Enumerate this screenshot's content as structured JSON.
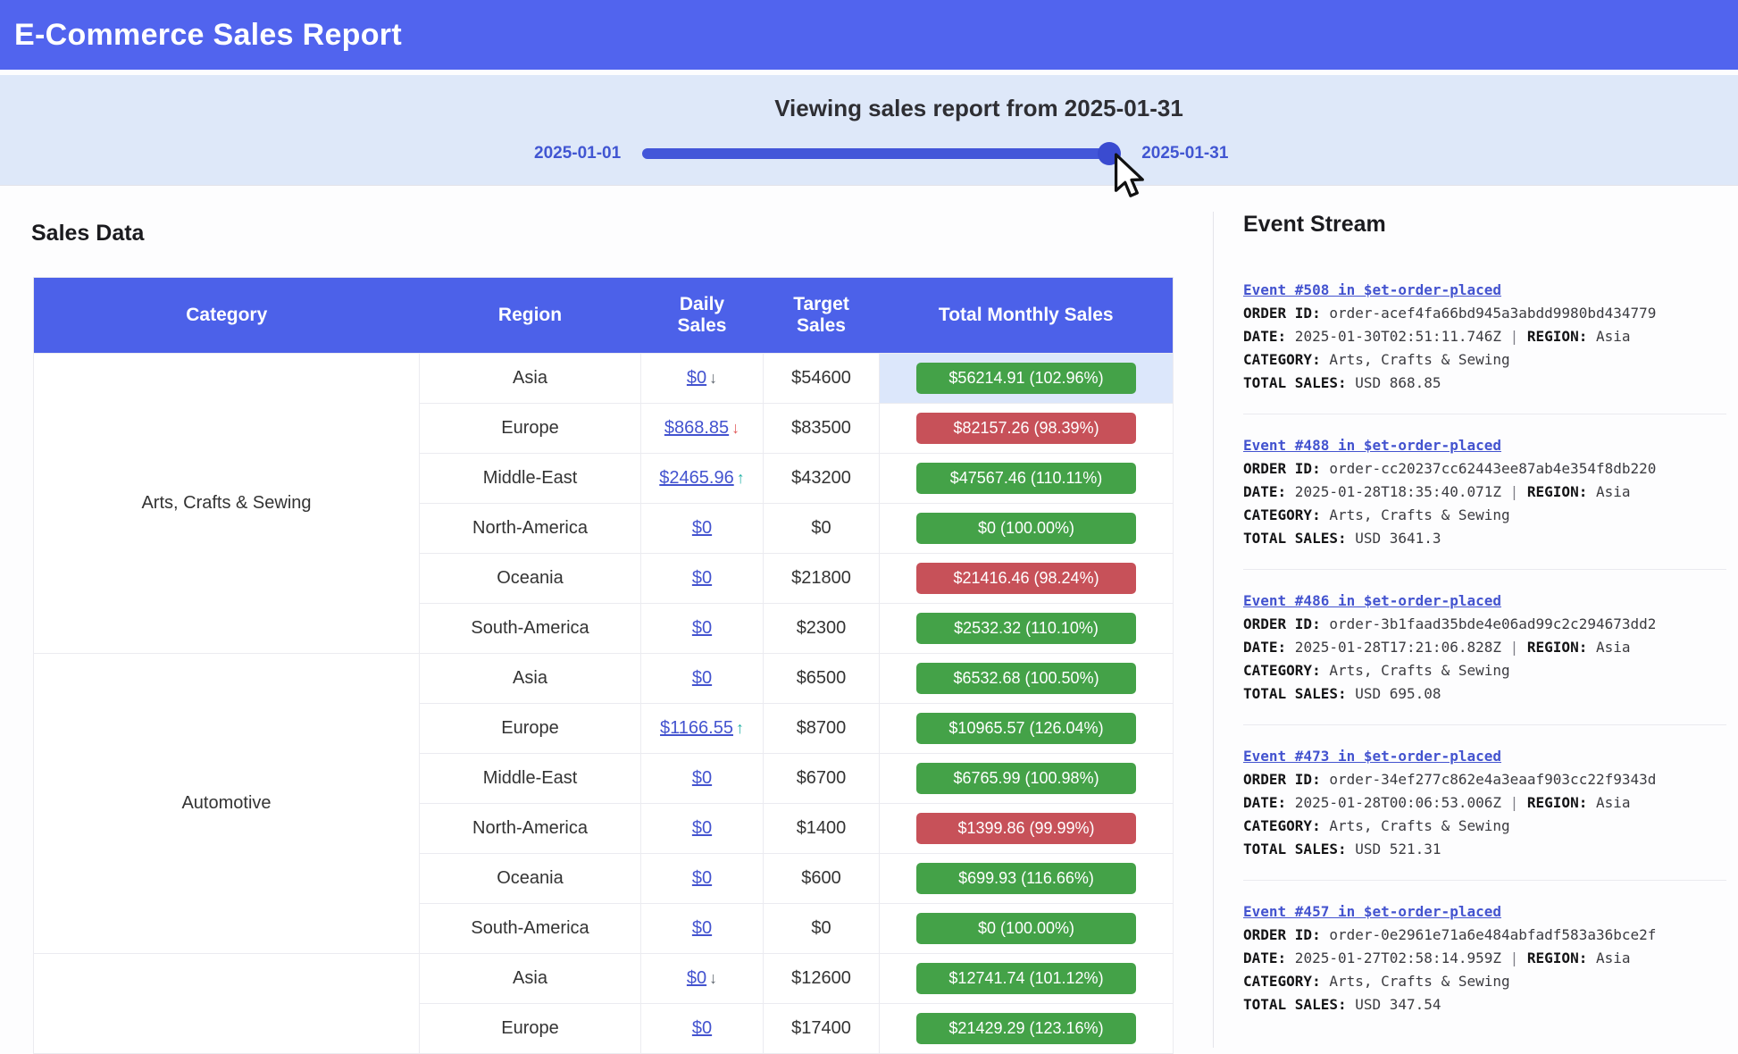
{
  "colors": {
    "header_blue": "#5164EE",
    "table_header_blue": "#4C61E9",
    "slider_bg": "#DEE8F9",
    "slider_track": "#4356D9",
    "slider_handle": "#3A4BD0",
    "label_blue": "#4156D2",
    "link_blue": "#4353CF",
    "badge_green": "#44A248",
    "badge_red": "#C75159",
    "row_highlight": "#DCE7FB",
    "arrow_gray": "#5F6670",
    "arrow_red": "#E15B5B",
    "arrow_teal": "#2AB3A8"
  },
  "header": {
    "title": "E-Commerce Sales Report"
  },
  "slider": {
    "title": "Viewing sales report from 2025-01-31",
    "min_label": "2025-01-01",
    "max_label": "2025-01-31"
  },
  "sales": {
    "heading": "Sales Data",
    "columns": [
      "Category",
      "Region",
      "Daily Sales",
      "Target Sales",
      "Total Monthly Sales"
    ],
    "groups": [
      {
        "category": "Arts, Crafts & Sewing",
        "rows": [
          {
            "region": "Asia",
            "daily": "$0",
            "arrow": "↓",
            "arrow_color": "arrow_gray",
            "target": "$54600",
            "total": "$56214.91 (102.96%)",
            "status": "green",
            "highlight": true
          },
          {
            "region": "Europe",
            "daily": "$868.85",
            "arrow": "↓",
            "arrow_color": "arrow_red",
            "target": "$83500",
            "total": "$82157.26 (98.39%)",
            "status": "red"
          },
          {
            "region": "Middle-East",
            "daily": "$2465.96",
            "arrow": "↑",
            "arrow_color": "arrow_teal",
            "target": "$43200",
            "total": "$47567.46 (110.11%)",
            "status": "green"
          },
          {
            "region": "North-America",
            "daily": "$0",
            "target": "$0",
            "total": "$0 (100.00%)",
            "status": "green"
          },
          {
            "region": "Oceania",
            "daily": "$0",
            "target": "$21800",
            "total": "$21416.46 (98.24%)",
            "status": "red"
          },
          {
            "region": "South-America",
            "daily": "$0",
            "target": "$2300",
            "total": "$2532.32 (110.10%)",
            "status": "green"
          }
        ]
      },
      {
        "category": "Automotive",
        "rows": [
          {
            "region": "Asia",
            "daily": "$0",
            "target": "$6500",
            "total": "$6532.68 (100.50%)",
            "status": "green"
          },
          {
            "region": "Europe",
            "daily": "$1166.55",
            "arrow": "↑",
            "arrow_color": "arrow_teal",
            "target": "$8700",
            "total": "$10965.57 (126.04%)",
            "status": "green"
          },
          {
            "region": "Middle-East",
            "daily": "$0",
            "target": "$6700",
            "total": "$6765.99 (100.98%)",
            "status": "green"
          },
          {
            "region": "North-America",
            "daily": "$0",
            "target": "$1400",
            "total": "$1399.86 (99.99%)",
            "status": "red"
          },
          {
            "region": "Oceania",
            "daily": "$0",
            "target": "$600",
            "total": "$699.93 (116.66%)",
            "status": "green"
          },
          {
            "region": "South-America",
            "daily": "$0",
            "target": "$0",
            "total": "$0 (100.00%)",
            "status": "green"
          }
        ]
      },
      {
        "category": "",
        "rows": [
          {
            "region": "Asia",
            "daily": "$0",
            "arrow": "↓",
            "arrow_color": "arrow_gray",
            "target": "$12600",
            "total": "$12741.74 (101.12%)",
            "status": "green"
          },
          {
            "region": "Europe",
            "daily": "$0",
            "target": "$17400",
            "total": "$21429.29 (123.16%)",
            "status": "green"
          }
        ]
      }
    ]
  },
  "events": {
    "heading": "Event Stream",
    "labels": {
      "order_id": "ORDER ID:",
      "date": "DATE:",
      "region": "REGION:",
      "category": "CATEGORY:",
      "total_sales": "TOTAL SALES:",
      "pipe": "|"
    },
    "items": [
      {
        "link": "Event #508 in $et-order-placed",
        "order_id": "order-acef4fa66bd945a3abdd9980bd434779",
        "date": "2025-01-30T02:51:11.746Z",
        "region": "Asia",
        "category": "Arts, Crafts & Sewing",
        "total_sales": "USD 868.85"
      },
      {
        "link": "Event #488 in $et-order-placed",
        "order_id": "order-cc20237cc62443ee87ab4e354f8db220",
        "date": "2025-01-28T18:35:40.071Z",
        "region": "Asia",
        "category": "Arts, Crafts & Sewing",
        "total_sales": "USD 3641.3"
      },
      {
        "link": "Event #486 in $et-order-placed",
        "order_id": "order-3b1faad35bde4e06ad99c2c294673dd2",
        "date": "2025-01-28T17:21:06.828Z",
        "region": "Asia",
        "category": "Arts, Crafts & Sewing",
        "total_sales": "USD 695.08"
      },
      {
        "link": "Event #473 in $et-order-placed",
        "order_id": "order-34ef277c862e4a3eaaf903cc22f9343d",
        "date": "2025-01-28T00:06:53.006Z",
        "region": "Asia",
        "category": "Arts, Crafts & Sewing",
        "total_sales": "USD 521.31"
      },
      {
        "link": "Event #457 in $et-order-placed",
        "order_id": "order-0e2961e71a6e484abfadf583a36bce2f",
        "date": "2025-01-27T02:58:14.959Z",
        "region": "Asia",
        "category": "Arts, Crafts & Sewing",
        "total_sales": "USD 347.54"
      }
    ]
  }
}
